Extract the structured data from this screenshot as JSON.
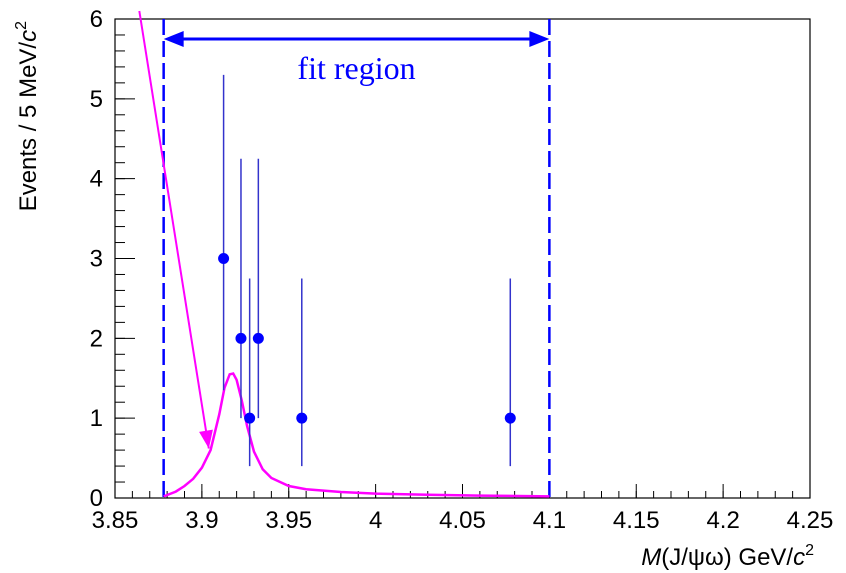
{
  "chart_data": {
    "type": "scatter",
    "xlabel_italic": "M",
    "xlabel_main": "(J/ψω) GeV/",
    "xlabel_c": "c",
    "xlabel_sup": "2",
    "ylabel_main": "Events / 5 MeV/",
    "ylabel_c": "c",
    "ylabel_sup": "2",
    "xlim": [
      3.85,
      4.25
    ],
    "ylim": [
      0,
      6
    ],
    "xtick_labels": [
      "3.85",
      "3.9",
      "3.95",
      "4",
      "4.05",
      "4.1",
      "4.15",
      "4.2",
      "4.25"
    ],
    "xticks": [
      3.85,
      3.9,
      3.95,
      4.0,
      4.05,
      4.1,
      4.15,
      4.2,
      4.25
    ],
    "ytick_labels": [
      "0",
      "1",
      "2",
      "3",
      "4",
      "5",
      "6"
    ],
    "yticks": [
      0,
      1,
      2,
      3,
      4,
      5,
      6
    ],
    "points": [
      {
        "x": 3.9125,
        "y": 3,
        "ylow": 1.35,
        "yhigh": 5.3
      },
      {
        "x": 3.9225,
        "y": 2,
        "ylow": 1.0,
        "yhigh": 4.25
      },
      {
        "x": 3.9275,
        "y": 1,
        "ylow": 0.4,
        "yhigh": 2.75
      },
      {
        "x": 3.9325,
        "y": 2,
        "ylow": 1.0,
        "yhigh": 4.25
      },
      {
        "x": 3.9575,
        "y": 1,
        "ylow": 0.4,
        "yhigh": 2.75
      },
      {
        "x": 4.0775,
        "y": 1,
        "ylow": 0.4,
        "yhigh": 2.75
      }
    ],
    "fit_curve": {
      "color": "#ff00ff",
      "x": [
        3.878,
        3.885,
        3.89,
        3.895,
        3.9,
        3.905,
        3.91,
        3.913,
        3.916,
        3.918,
        3.92,
        3.923,
        3.926,
        3.93,
        3.935,
        3.94,
        3.95,
        3.96,
        3.98,
        4.0,
        4.03,
        4.06,
        4.1
      ],
      "y": [
        0.02,
        0.08,
        0.15,
        0.24,
        0.38,
        0.6,
        1.05,
        1.38,
        1.55,
        1.56,
        1.48,
        1.22,
        0.9,
        0.58,
        0.36,
        0.25,
        0.15,
        0.11,
        0.075,
        0.055,
        0.04,
        0.03,
        0.02
      ]
    },
    "fit_region": {
      "label": "fit region",
      "x_low": 3.878,
      "x_high": 4.1,
      "arrow_y": 5.75,
      "color": "#0000ff"
    },
    "arrow_annotation": {
      "color": "#ff00ff",
      "from": {
        "x": 3.864,
        "y": 6.1
      },
      "to": {
        "x": 3.904,
        "y": 0.62
      }
    },
    "marker_color": "#0000ff",
    "errorbar_color": "#3333cc"
  }
}
